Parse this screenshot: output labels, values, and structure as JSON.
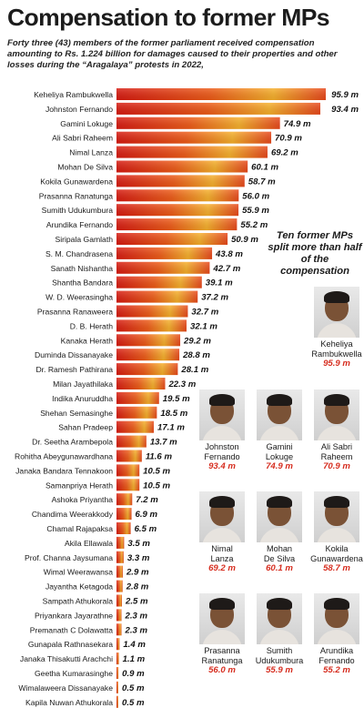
{
  "header": {
    "title": "Compensation to former MPs",
    "subtitle": "Forty three (43) members of the former parliament received compensation amounting to Rs. 1.224 billion for damages caused to their properties and other losses during the “Aragalaya” protests in 2022,"
  },
  "callout": "Ten former MPs split more than half of the compensation",
  "colors": {
    "bar_dark": "#d81a10",
    "bar_mid": "#ee5a16",
    "bar_light": "#f7b02a",
    "highlight_value": "#d62d1f"
  },
  "chart_data": {
    "type": "bar",
    "orientation": "horizontal",
    "unit": "m",
    "categories": [
      "Keheliya Rambukwella",
      "Johnston Fernando",
      "Gamini Lokuge",
      "Ali Sabri Raheem",
      "Nimal Lanza",
      "Mohan De Silva",
      "Kokila Gunawardena",
      "Prasanna Ranatunga",
      "Sumith Udukumbura",
      "Arundika Fernando",
      "Siripala Gamlath",
      "S. M. Chandrasena",
      "Sanath Nishantha",
      "Shantha Bandara",
      "W. D. Weerasingha",
      "Prasanna Ranaweera",
      "D. B. Herath",
      "Kanaka Herath",
      "Duminda Dissanayake",
      "Dr. Ramesh Pathirana",
      "Milan Jayathilaka",
      "Indika Anuruddha",
      "Shehan Semasinghe",
      "Sahan Pradeep",
      "Dr. Seetha Arambepola",
      "Rohitha Abeygunawardhana",
      "Janaka Bandara Tennakoon",
      "Samanpriya Herath",
      "Ashoka Priyantha",
      "Chandima Weerakkody",
      "Chamal Rajapaksa",
      "Akila Ellawala",
      "Prof. Channa Jaysumana",
      "Wimal Weerawansa",
      "Jayantha Ketagoda",
      "Sampath Athukorala",
      "Priyankara Jayarathne",
      "Premanath C Dolawatta",
      "Gunapala Rathnasekara",
      "Janaka Thisakutti Arachchi",
      "Geetha Kumarasinghe",
      "Wimalaweera Dissanayake",
      "Kapila Nuwan Athukorala"
    ],
    "values": [
      95.9,
      93.4,
      74.9,
      70.9,
      69.2,
      60.1,
      58.7,
      56.0,
      55.9,
      55.2,
      50.9,
      43.8,
      42.7,
      39.1,
      37.2,
      32.7,
      32.1,
      29.2,
      28.8,
      28.1,
      22.3,
      19.5,
      18.5,
      17.1,
      13.7,
      11.6,
      10.5,
      10.5,
      7.2,
      6.9,
      6.5,
      3.5,
      3.3,
      2.9,
      2.8,
      2.5,
      2.3,
      2.3,
      1.4,
      1.1,
      0.9,
      0.5,
      0.5
    ],
    "value_labels": [
      "95.9 m",
      "93.4 m",
      "74.9 m",
      "70.9 m",
      "69.2 m",
      "60.1 m",
      "58.7 m",
      "56.0 m",
      "55.9 m",
      "55.2 m",
      "50.9 m",
      "43.8 m",
      "42.7 m",
      "39.1 m",
      "37.2 m",
      "32.7 m",
      "32.1 m",
      "29.2 m",
      "28.8 m",
      "28.1 m",
      "22.3 m",
      "19.5 m",
      "18.5 m",
      "17.1 m",
      "13.7 m",
      "11.6 m",
      "10.5 m",
      "10.5 m",
      "7.2 m",
      "6.9 m",
      "6.5 m",
      "3.5 m",
      "3.3 m",
      "2.9 m",
      "2.8 m",
      "2.5 m",
      "2.3 m",
      "2.3 m",
      "1.4 m",
      "1.1 m",
      "0.9 m",
      "0.5 m",
      "0.5 m"
    ],
    "title": "Compensation to former MPs",
    "xlim": [
      0,
      95.9
    ]
  },
  "cards": [
    {
      "name": "Keheliya\nRambukwella",
      "value": "95.9 m"
    },
    {
      "name": "Johnston\nFernando",
      "value": "93.4 m"
    },
    {
      "name": "Gamini\nLokuge",
      "value": "74.9 m"
    },
    {
      "name": "Ali Sabri\nRaheem",
      "value": "70.9 m"
    },
    {
      "name": "Nimal\nLanza",
      "value": "69.2 m"
    },
    {
      "name": "Mohan\nDe Silva",
      "value": "60.1 m"
    },
    {
      "name": "Kokila\nGunawardena",
      "value": "58.7 m"
    },
    {
      "name": "Prasanna\nRanatunga",
      "value": "56.0 m"
    },
    {
      "name": "Sumith\nUdukumbura",
      "value": "55.9 m"
    },
    {
      "name": "Arundika\nFernando",
      "value": "55.2 m"
    }
  ]
}
